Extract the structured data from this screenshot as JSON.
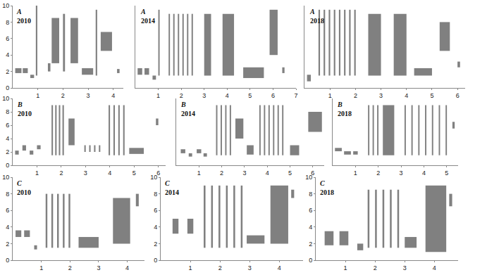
{
  "chart_data": [
    {
      "type": "spectrogram",
      "title": "A",
      "subtitle": "2010",
      "color": "#555555",
      "xlim": [
        0,
        4.4
      ],
      "xticks": [
        1,
        2,
        3,
        4
      ],
      "ylim": [
        0,
        10
      ],
      "yticks": [
        0,
        2,
        4,
        6,
        8,
        10
      ],
      "notes": [
        [
          0.1,
          0.35,
          1.8,
          2.4
        ],
        [
          0.4,
          0.6,
          1.8,
          2.4
        ],
        [
          0.7,
          0.85,
          1.2,
          1.6
        ],
        [
          0.92,
          0.98,
          1.5,
          10
        ],
        [
          1.4,
          1.5,
          2,
          3
        ],
        [
          1.55,
          1.85,
          3,
          8.5
        ],
        [
          2.0,
          2.08,
          2,
          9
        ],
        [
          2.3,
          2.6,
          3,
          8.5
        ],
        [
          2.75,
          3.2,
          1.6,
          2.4
        ],
        [
          3.3,
          3.36,
          1.5,
          9.5
        ],
        [
          3.5,
          3.95,
          4.5,
          6.8
        ],
        [
          4.15,
          4.25,
          1.8,
          2.3
        ]
      ]
    },
    {
      "type": "spectrogram",
      "title": "A",
      "subtitle": "2014",
      "color": "#555555",
      "tick_labels": "x",
      "xlim": [
        0,
        7
      ],
      "xticks": [
        1,
        2,
        3,
        4,
        5,
        6,
        7
      ],
      "ylim": [
        0,
        10
      ],
      "yticks": [
        0,
        2,
        4,
        6,
        8,
        10
      ],
      "notes": [
        [
          0.1,
          0.3,
          1.6,
          2.4
        ],
        [
          0.4,
          0.6,
          1.6,
          2.4
        ],
        [
          0.75,
          0.9,
          1,
          1.5
        ],
        [
          1.0,
          1.06,
          1.5,
          9.5
        ],
        [
          1.45,
          1.51,
          1.5,
          9
        ],
        [
          1.65,
          1.71,
          1.5,
          9
        ],
        [
          1.85,
          1.91,
          1.5,
          9
        ],
        [
          2.05,
          2.11,
          1.5,
          9
        ],
        [
          2.25,
          2.31,
          1.5,
          9
        ],
        [
          2.45,
          2.51,
          1.5,
          9
        ],
        [
          3.0,
          3.3,
          1.5,
          9
        ],
        [
          3.8,
          4.3,
          1.5,
          9
        ],
        [
          4.7,
          5.6,
          1.2,
          2.5
        ],
        [
          5.85,
          6.2,
          4,
          9.5
        ],
        [
          6.4,
          6.5,
          1.8,
          2.5
        ]
      ]
    },
    {
      "type": "spectrogram",
      "title": "A",
      "subtitle": "2018",
      "color": "#555555",
      "tick_labels": "x",
      "xlim": [
        0,
        6.3
      ],
      "xticks": [
        1,
        2,
        3,
        4,
        5,
        6
      ],
      "ylim": [
        0,
        10
      ],
      "yticks": [
        0,
        2,
        4,
        6,
        8,
        10
      ],
      "notes": [
        [
          0.1,
          0.25,
          0.8,
          1.6
        ],
        [
          0.55,
          0.61,
          1.5,
          9.5
        ],
        [
          0.75,
          0.81,
          1.5,
          9.5
        ],
        [
          0.95,
          1.01,
          1.5,
          9.5
        ],
        [
          1.15,
          1.21,
          1.5,
          9.5
        ],
        [
          1.35,
          1.41,
          1.5,
          9.5
        ],
        [
          1.55,
          1.61,
          1.5,
          9.5
        ],
        [
          1.75,
          1.81,
          1.5,
          9.5
        ],
        [
          1.95,
          2.01,
          1.5,
          9.5
        ],
        [
          2.5,
          3.0,
          1.5,
          9
        ],
        [
          3.5,
          4.0,
          1.5,
          9
        ],
        [
          4.3,
          5.0,
          1.5,
          2.4
        ],
        [
          5.3,
          5.7,
          4.5,
          8
        ],
        [
          6.0,
          6.1,
          2.5,
          3.2
        ]
      ]
    },
    {
      "type": "spectrogram",
      "title": "B",
      "subtitle": "2010",
      "color": "#555555",
      "xlim": [
        0,
        6.3
      ],
      "xticks": [
        1,
        2,
        3,
        4,
        5,
        6
      ],
      "ylim": [
        0,
        10
      ],
      "yticks": [
        0,
        2,
        4,
        6,
        8,
        10
      ],
      "notes": [
        [
          0.1,
          0.25,
          1.6,
          2.2
        ],
        [
          0.4,
          0.55,
          2.2,
          3
        ],
        [
          0.7,
          0.85,
          1.6,
          2.2
        ],
        [
          1.0,
          1.15,
          2.4,
          3
        ],
        [
          1.6,
          1.66,
          1.5,
          9
        ],
        [
          1.75,
          1.81,
          1.5,
          9
        ],
        [
          1.9,
          1.96,
          1.5,
          9
        ],
        [
          2.05,
          2.11,
          1.5,
          9
        ],
        [
          2.3,
          2.55,
          3,
          7
        ],
        [
          2.95,
          3.01,
          2,
          3
        ],
        [
          3.15,
          3.21,
          2,
          3
        ],
        [
          3.35,
          3.41,
          2,
          3
        ],
        [
          3.55,
          3.61,
          2,
          3
        ],
        [
          3.95,
          4.01,
          1.5,
          9
        ],
        [
          4.15,
          4.21,
          1.5,
          9
        ],
        [
          4.35,
          4.41,
          1.5,
          9
        ],
        [
          4.55,
          4.61,
          1.5,
          9
        ],
        [
          4.8,
          5.4,
          1.7,
          2.6
        ],
        [
          5.9,
          6.0,
          6,
          7
        ]
      ]
    },
    {
      "type": "spectrogram",
      "title": "B",
      "subtitle": "2014",
      "color": "#555555",
      "tick_labels": "x",
      "xlim": [
        0,
        6.5
      ],
      "xticks": [
        1,
        2,
        3,
        4,
        5,
        6
      ],
      "ylim": [
        0,
        10
      ],
      "yticks": [
        0,
        2,
        4,
        6,
        8,
        10
      ],
      "notes": [
        [
          0.2,
          0.4,
          1.8,
          2.4
        ],
        [
          0.55,
          0.7,
          1.3,
          1.8
        ],
        [
          0.9,
          1.1,
          1.8,
          2.4
        ],
        [
          1.2,
          1.35,
          1.3,
          1.8
        ],
        [
          1.75,
          1.81,
          1.5,
          9
        ],
        [
          1.95,
          2.01,
          1.5,
          9
        ],
        [
          2.15,
          2.21,
          1.5,
          9
        ],
        [
          2.35,
          2.41,
          1.5,
          9
        ],
        [
          2.6,
          2.95,
          4,
          7
        ],
        [
          3.1,
          3.4,
          1.6,
          3
        ],
        [
          3.65,
          3.71,
          1.5,
          9
        ],
        [
          3.85,
          3.91,
          1.5,
          9
        ],
        [
          4.05,
          4.11,
          1.5,
          9
        ],
        [
          4.25,
          4.31,
          1.5,
          9
        ],
        [
          4.45,
          4.51,
          1.5,
          9
        ],
        [
          4.65,
          4.71,
          1.5,
          9
        ],
        [
          5.0,
          5.4,
          1.5,
          3
        ],
        [
          5.8,
          6.4,
          5,
          8
        ]
      ]
    },
    {
      "type": "spectrogram",
      "title": "B",
      "subtitle": "2018",
      "color": "#555555",
      "tick_labels": "x",
      "xlim": [
        0,
        5.5
      ],
      "xticks": [
        1,
        2,
        3,
        4,
        5
      ],
      "ylim": [
        0,
        10
      ],
      "yticks": [
        0,
        2,
        4,
        6,
        8,
        10
      ],
      "notes": [
        [
          0.1,
          0.4,
          2.1,
          2.6
        ],
        [
          0.5,
          0.8,
          1.6,
          2.1
        ],
        [
          0.9,
          1.1,
          1.6,
          2.1
        ],
        [
          1.55,
          1.61,
          1.5,
          9
        ],
        [
          1.75,
          1.81,
          1.5,
          9
        ],
        [
          1.95,
          2.01,
          1.5,
          9
        ],
        [
          2.2,
          2.7,
          1.5,
          9
        ],
        [
          3.15,
          3.21,
          1.5,
          9
        ],
        [
          3.45,
          3.51,
          1.5,
          9
        ],
        [
          3.75,
          3.81,
          1.5,
          9
        ],
        [
          4.05,
          4.11,
          1.5,
          9
        ],
        [
          4.35,
          4.41,
          1.5,
          9
        ],
        [
          4.65,
          4.71,
          1.5,
          9
        ],
        [
          4.95,
          5.01,
          1.5,
          9
        ],
        [
          5.25,
          5.35,
          5.5,
          6.5
        ]
      ]
    },
    {
      "type": "spectrogram",
      "title": "C",
      "subtitle": "2010",
      "color": "#555555",
      "xlim": [
        0,
        4.6
      ],
      "xticks": [
        1,
        2,
        3,
        4
      ],
      "ylim": [
        0,
        10
      ],
      "yticks": [
        0,
        2,
        4,
        6,
        8,
        10
      ],
      "notes": [
        [
          0.1,
          0.3,
          2.8,
          3.6
        ],
        [
          0.4,
          0.6,
          2.8,
          3.6
        ],
        [
          0.75,
          0.85,
          1.3,
          1.8
        ],
        [
          1.15,
          1.21,
          1.5,
          8
        ],
        [
          1.35,
          1.41,
          1.5,
          8
        ],
        [
          1.55,
          1.61,
          1.5,
          8
        ],
        [
          1.75,
          1.81,
          1.5,
          8
        ],
        [
          1.95,
          2.01,
          1.5,
          8
        ],
        [
          2.3,
          3.0,
          1.5,
          2.8
        ],
        [
          3.5,
          4.1,
          2,
          7.5
        ],
        [
          4.3,
          4.4,
          6.5,
          8
        ]
      ]
    },
    {
      "type": "spectrogram",
      "title": "C",
      "subtitle": "2014",
      "color": "#555555",
      "xlim": [
        0,
        4.8
      ],
      "xticks": [
        1,
        2,
        3,
        4
      ],
      "ylim": [
        0,
        10
      ],
      "yticks": [
        0,
        2,
        4,
        6,
        8,
        10
      ],
      "notes": [
        [
          0.4,
          0.6,
          3.2,
          5
        ],
        [
          0.9,
          1.1,
          3.2,
          5
        ],
        [
          1.45,
          1.51,
          1.5,
          9
        ],
        [
          1.7,
          1.76,
          1.5,
          9
        ],
        [
          1.95,
          2.01,
          1.5,
          9
        ],
        [
          2.2,
          2.26,
          1.5,
          9
        ],
        [
          2.45,
          2.51,
          1.5,
          9
        ],
        [
          2.7,
          2.76,
          1.5,
          9
        ],
        [
          2.9,
          3.5,
          2,
          3
        ],
        [
          3.7,
          4.3,
          2,
          9
        ],
        [
          4.4,
          4.5,
          7.5,
          8.5
        ]
      ]
    },
    {
      "type": "spectrogram",
      "title": "C",
      "subtitle": "2018",
      "color": "#555555",
      "xlim": [
        0,
        4.8
      ],
      "xticks": [
        1,
        2,
        3,
        4
      ],
      "ylim": [
        0,
        10
      ],
      "yticks": [
        0,
        2,
        4,
        6,
        8,
        10
      ],
      "notes": [
        [
          0.3,
          0.6,
          1.8,
          3.5
        ],
        [
          0.8,
          1.1,
          1.8,
          3.5
        ],
        [
          1.4,
          1.6,
          1.2,
          2
        ],
        [
          1.75,
          1.81,
          1.5,
          8.5
        ],
        [
          2.0,
          2.06,
          1.5,
          8.5
        ],
        [
          2.25,
          2.31,
          1.5,
          8.5
        ],
        [
          2.5,
          2.56,
          1.5,
          8.5
        ],
        [
          2.75,
          2.81,
          1.5,
          8.5
        ],
        [
          3.0,
          3.4,
          1.5,
          2.8
        ],
        [
          3.7,
          4.4,
          1,
          9
        ],
        [
          4.5,
          4.6,
          6.5,
          8
        ]
      ]
    }
  ]
}
